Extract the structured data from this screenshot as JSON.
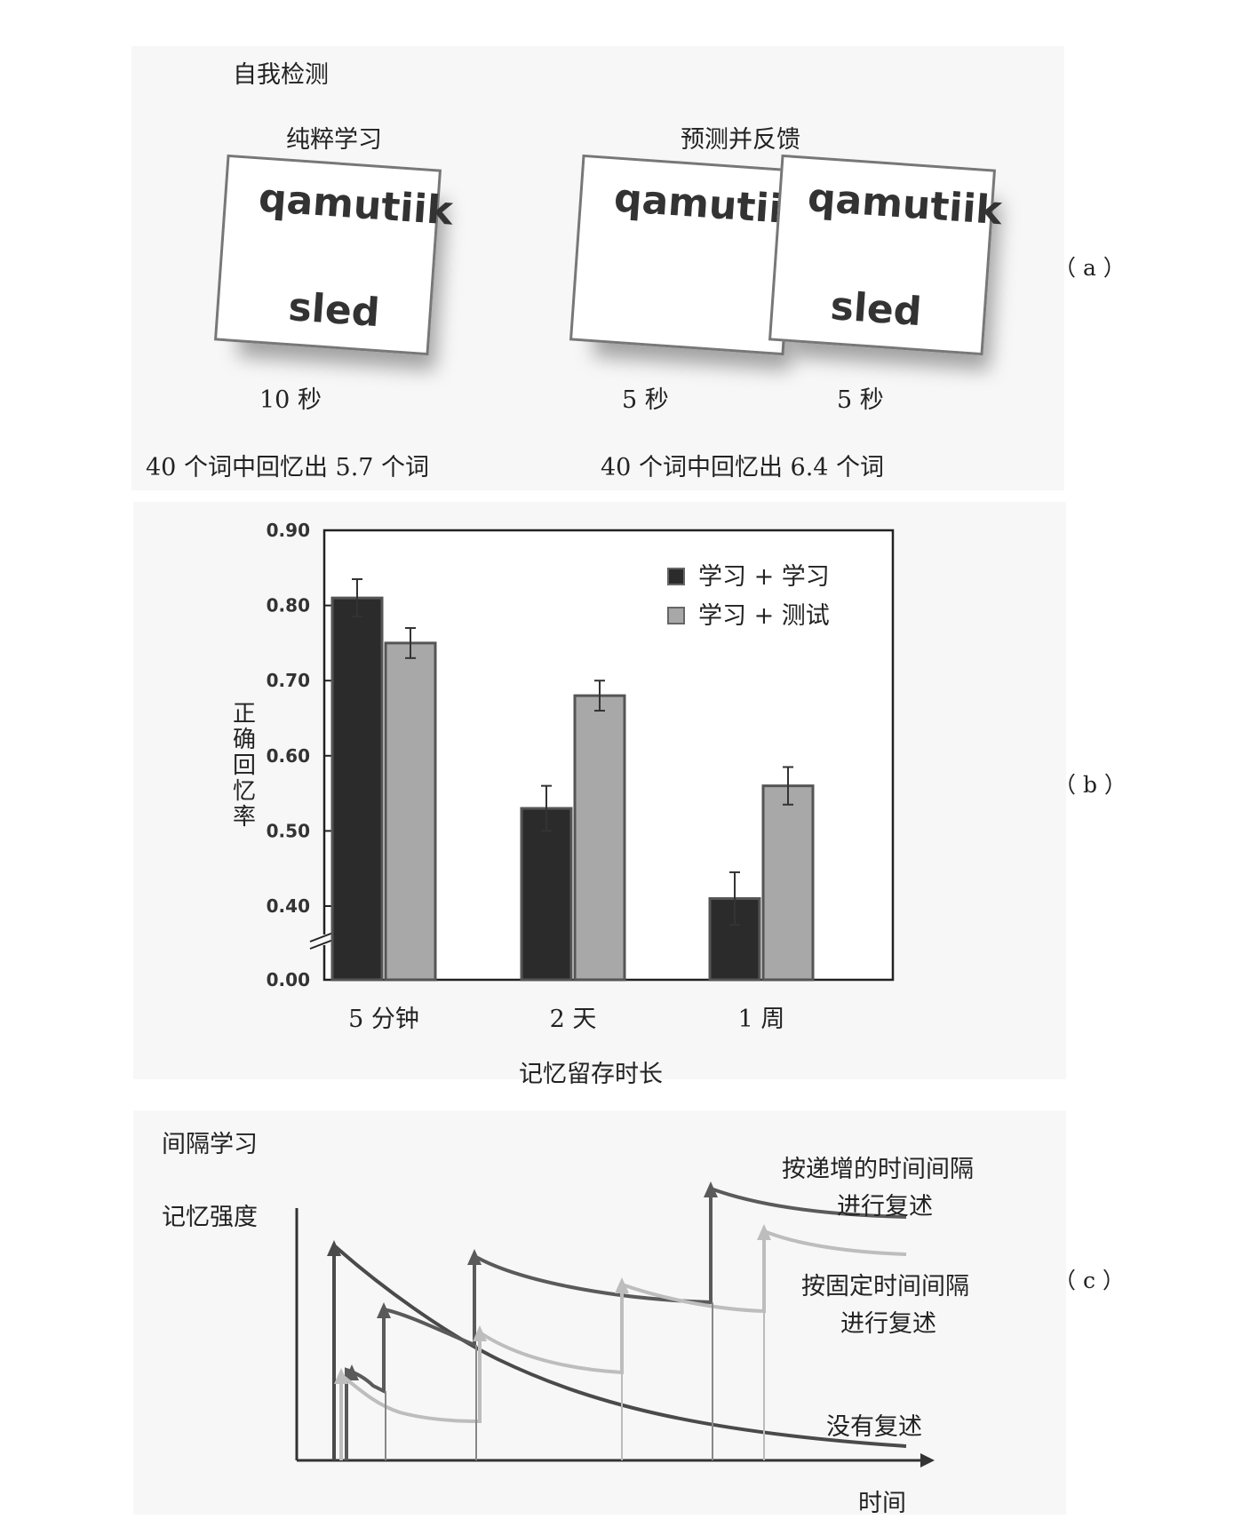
{
  "panel_a": {
    "title": "自我检测",
    "left_heading": "纯粹学习",
    "right_heading": "预测并反馈",
    "card_word_top": "qamutiik",
    "card_word_bottom": "sled",
    "left_time": "10 秒",
    "right_time_1": "5 秒",
    "right_time_2": "5 秒",
    "left_result": "40 个词中回忆出 5.7 个词",
    "right_result": "40 个词中回忆出 6.4 个词",
    "label": "（ a ）"
  },
  "panel_b": {
    "label": "（ b ）"
  },
  "chart_data": {
    "type": "bar",
    "categories": [
      "5 分钟",
      "2 天",
      "1 周"
    ],
    "series": [
      {
        "name": "学习 + 学习",
        "values": [
          0.81,
          0.53,
          0.41
        ],
        "errors": [
          0.025,
          0.03,
          0.035
        ],
        "color": "#2b2b2b"
      },
      {
        "name": "学习 + 测试",
        "values": [
          0.75,
          0.68,
          0.56
        ],
        "errors": [
          0.02,
          0.02,
          0.025
        ],
        "color": "#a8a8a8"
      }
    ],
    "xlabel": "记忆留存时长",
    "ylabel": "正确回忆率",
    "yticks": [
      "0.00",
      "0.40",
      "0.50",
      "0.60",
      "0.70",
      "0.80",
      "0.90"
    ],
    "ylim": [
      0.35,
      0.9
    ],
    "axis_break": true,
    "legend_position": "top-right"
  },
  "panel_c": {
    "title": "间隔学习",
    "ylabel": "记忆强度",
    "xlabel": "时间",
    "curve_increasing_line1": "按递增的时间间隔",
    "curve_increasing_line2": "进行复述",
    "curve_fixed_line1": "按固定时间间隔",
    "curve_fixed_line2": "进行复述",
    "curve_none": "没有复述",
    "label": "（ c ）"
  }
}
